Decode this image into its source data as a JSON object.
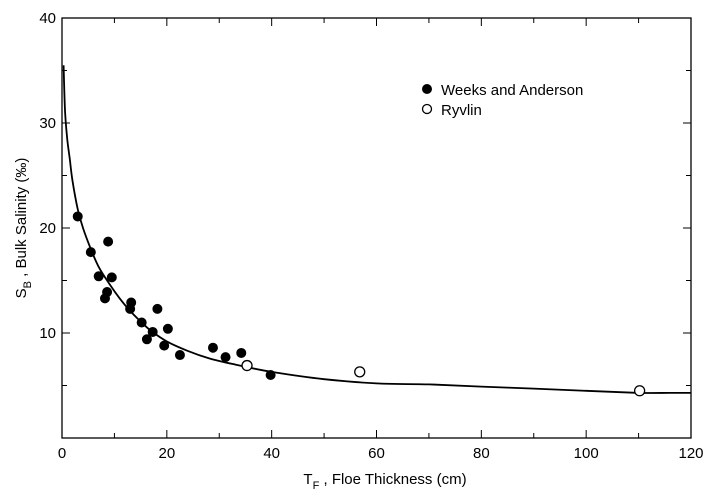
{
  "chart_data": {
    "type": "scatter",
    "xlabel_main": "T",
    "xlabel_sub": "F",
    "xlabel_rest": " , Floe Thickness (cm)",
    "ylabel_main": "S",
    "ylabel_sub": "B",
    "ylabel_rest": " , Bulk Salinity (‰)",
    "xlim": [
      0,
      120
    ],
    "ylim": [
      0,
      40
    ],
    "x_ticks": [
      0,
      20,
      40,
      60,
      80,
      100,
      120
    ],
    "y_ticks": [
      10,
      20,
      30,
      40
    ],
    "x_tick_labels": [
      "0",
      "20",
      "40",
      "60",
      "80",
      "100",
      "120"
    ],
    "y_tick_labels": [
      "10",
      "20",
      "30",
      "40"
    ],
    "grid": false,
    "legend_position": "top-right",
    "series": [
      {
        "name": "Weeks and Anderson",
        "marker": "filled-circle",
        "points": [
          [
            3,
            21.1
          ],
          [
            5.5,
            17.7
          ],
          [
            7,
            15.4
          ],
          [
            8.2,
            13.3
          ],
          [
            8.6,
            13.9
          ],
          [
            8.8,
            18.7
          ],
          [
            9.5,
            15.3
          ],
          [
            13,
            12.3
          ],
          [
            13.2,
            12.9
          ],
          [
            15.2,
            11.0
          ],
          [
            16.2,
            9.4
          ],
          [
            17.3,
            10.1
          ],
          [
            18.2,
            12.3
          ],
          [
            19.5,
            8.8
          ],
          [
            20.2,
            10.4
          ],
          [
            22.5,
            7.9
          ],
          [
            28.8,
            8.6
          ],
          [
            31.2,
            7.7
          ],
          [
            34.2,
            8.1
          ],
          [
            39.8,
            6.0
          ]
        ]
      },
      {
        "name": "Ryvlin",
        "marker": "open-circle",
        "points": [
          [
            35.3,
            6.9
          ],
          [
            56.8,
            6.3
          ],
          [
            110.2,
            4.5
          ]
        ]
      }
    ],
    "fit_curve": [
      [
        0.3,
        35.5
      ],
      [
        0.6,
        31
      ],
      [
        1,
        28.5
      ],
      [
        1.5,
        26.5
      ],
      [
        2,
        24.5
      ],
      [
        3,
        21.8
      ],
      [
        4,
        20
      ],
      [
        5.5,
        18
      ],
      [
        7,
        16.3
      ],
      [
        9,
        14.7
      ],
      [
        11,
        13.3
      ],
      [
        13,
        12.1
      ],
      [
        15,
        11.1
      ],
      [
        17,
        10.2
      ],
      [
        20,
        9.2
      ],
      [
        24,
        8.3
      ],
      [
        28,
        7.6
      ],
      [
        33,
        7.0
      ],
      [
        40,
        6.3
      ],
      [
        50,
        5.6
      ],
      [
        60,
        5.2
      ],
      [
        70,
        5.1
      ],
      [
        80,
        4.9
      ],
      [
        90,
        4.7
      ],
      [
        100,
        4.5
      ],
      [
        110,
        4.3
      ],
      [
        116,
        4.3
      ],
      [
        120,
        4.3
      ]
    ]
  }
}
